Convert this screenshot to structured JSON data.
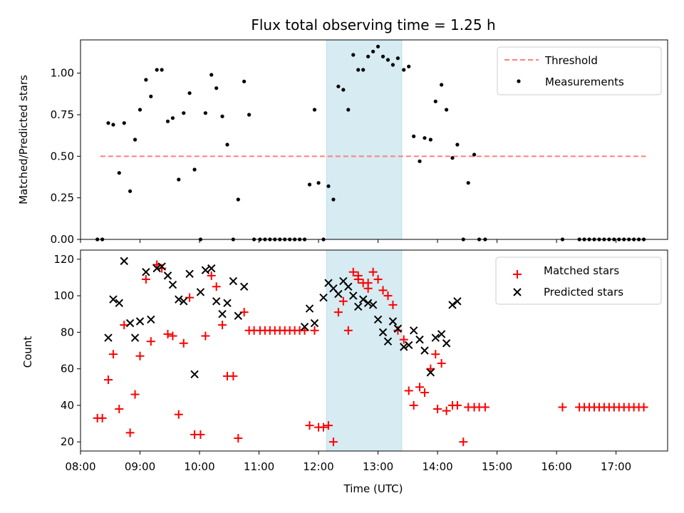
{
  "chart_data": [
    {
      "type": "scatter",
      "title": "Flux total observing time = 1.25 h",
      "xlabel": "",
      "ylabel": "Matched/Predicted stars",
      "xlim": [
        "08:00",
        "17:52"
      ],
      "ylim": [
        0,
        1.2
      ],
      "yticks": [
        "0.00",
        "0.25",
        "0.50",
        "0.75",
        "1.00"
      ],
      "highlight_span": {
        "start": "12:08",
        "end": "13:24"
      },
      "legend": {
        "placement": "top-right",
        "entries": [
          "Threshold",
          "Measurements"
        ]
      },
      "threshold": {
        "name": "Threshold",
        "value": 0.5,
        "x_start": "08:20",
        "x_end": "17:30",
        "color": "#ff7f7f",
        "style": "dashed"
      },
      "series": [
        {
          "name": "Measurements",
          "color": "#000000",
          "marker": "dot",
          "x": [
            "08:17",
            "08:22",
            "08:28",
            "08:33",
            "08:39",
            "08:44",
            "08:50",
            "08:55",
            "09:00",
            "09:06",
            "09:11",
            "09:17",
            "09:22",
            "09:28",
            "09:33",
            "09:39",
            "09:44",
            "09:50",
            "09:55",
            "10:01",
            "10:06",
            "10:12",
            "10:17",
            "10:23",
            "10:28",
            "10:34",
            "10:39",
            "10:45",
            "10:50",
            "10:55",
            "11:01",
            "11:06",
            "11:11",
            "11:16",
            "11:21",
            "11:26",
            "11:31",
            "11:36",
            "11:41",
            "11:46",
            "11:51",
            "11:56",
            "12:00",
            "12:05",
            "12:10",
            "12:15",
            "12:20",
            "12:25",
            "12:30",
            "12:35",
            "12:40",
            "12:45",
            "12:50",
            "12:55",
            "13:00",
            "13:05",
            "13:10",
            "13:15",
            "13:20",
            "13:26",
            "13:31",
            "13:36",
            "13:42",
            "13:47",
            "13:53",
            "13:58",
            "14:04",
            "14:09",
            "14:15",
            "14:20",
            "14:26",
            "14:31",
            "14:37",
            "14:42",
            "14:48",
            "16:06",
            "16:23",
            "16:28",
            "16:33",
            "16:38",
            "16:43",
            "16:48",
            "16:53",
            "16:58",
            "17:03",
            "17:08",
            "17:13",
            "17:18",
            "17:23",
            "17:28"
          ],
          "y": [
            0,
            0,
            0.7,
            0.69,
            0.4,
            0.7,
            0.29,
            0.6,
            0.78,
            0.96,
            0.86,
            1.02,
            1.02,
            0.71,
            0.73,
            0.36,
            0.76,
            0.88,
            0.42,
            0,
            0.76,
            0.99,
            0.91,
            0.74,
            0.57,
            0,
            0.24,
            0.95,
            0.75,
            0,
            0,
            0,
            0,
            0,
            0,
            0,
            0,
            0,
            0,
            0,
            0.33,
            0.78,
            0.34,
            0,
            0.32,
            0.24,
            0.92,
            0.9,
            0.78,
            1.11,
            1.02,
            1.02,
            1.1,
            1.13,
            1.16,
            1.1,
            1.08,
            1.05,
            1.09,
            1.02,
            1.04,
            0.62,
            0.47,
            0.61,
            0.6,
            0.83,
            0.93,
            0.78,
            0.49,
            0.57,
            0,
            0.34,
            0.51,
            0,
            0,
            0,
            0,
            0,
            0,
            0,
            0,
            0,
            0,
            0,
            0,
            0,
            0,
            0,
            0,
            0
          ]
        }
      ]
    },
    {
      "type": "scatter",
      "title": "",
      "xlabel": "Time (UTC)",
      "ylabel": "Count",
      "xlim": [
        "08:00",
        "17:52"
      ],
      "ylim": [
        15,
        125
      ],
      "yticks": [
        "20",
        "40",
        "60",
        "80",
        "100",
        "120"
      ],
      "xticks": [
        "08:00",
        "09:00",
        "10:00",
        "11:00",
        "12:00",
        "13:00",
        "14:00",
        "15:00",
        "16:00",
        "17:00"
      ],
      "highlight_span": {
        "start": "12:08",
        "end": "13:24"
      },
      "legend": {
        "placement": "top-right",
        "entries": [
          "Matched stars",
          "Predicted stars"
        ]
      },
      "series": [
        {
          "name": "Matched stars",
          "color": "#ff0000",
          "marker": "plus",
          "x": [
            "08:17",
            "08:22",
            "08:28",
            "08:33",
            "08:39",
            "08:44",
            "08:50",
            "08:55",
            "09:00",
            "09:06",
            "09:11",
            "09:17",
            "09:22",
            "09:28",
            "09:33",
            "09:39",
            "09:44",
            "09:50",
            "09:55",
            "10:01",
            "10:06",
            "10:12",
            "10:17",
            "10:23",
            "10:28",
            "10:34",
            "10:39",
            "10:45",
            "10:50",
            "10:55",
            "11:01",
            "11:06",
            "11:11",
            "11:16",
            "11:21",
            "11:26",
            "11:31",
            "11:36",
            "11:41",
            "11:46",
            "11:51",
            "11:56",
            "12:00",
            "12:05",
            "12:10",
            "12:15",
            "12:20",
            "12:25",
            "12:30",
            "12:35",
            "12:40",
            "12:45",
            "12:50",
            "12:55",
            "13:00",
            "13:05",
            "13:10",
            "13:15",
            "13:20",
            "13:26",
            "13:31",
            "13:36",
            "13:42",
            "13:47",
            "13:53",
            "13:58",
            "14:04",
            "14:09",
            "14:15",
            "14:20",
            "14:26",
            "14:31",
            "14:37",
            "14:42",
            "14:48",
            "16:06",
            "16:23",
            "16:28",
            "16:33",
            "16:38",
            "16:43",
            "16:48",
            "16:53",
            "16:58",
            "17:03",
            "17:08",
            "17:13",
            "17:18",
            "17:23",
            "17:28",
            "12:50",
            "12:40",
            "14:00"
          ],
          "y": [
            33,
            33,
            54,
            68,
            38,
            84,
            25,
            46,
            67,
            109,
            75,
            117,
            115,
            79,
            78,
            35,
            74,
            99,
            24,
            24,
            78,
            111,
            105,
            84,
            56,
            56,
            22,
            91,
            81,
            81,
            81,
            81,
            81,
            81,
            81,
            81,
            81,
            81,
            81,
            81,
            29,
            81,
            28,
            28,
            29,
            20,
            91,
            97,
            81,
            113,
            111,
            107,
            104,
            113,
            109,
            103,
            100,
            95,
            81,
            76,
            48,
            40,
            50,
            47,
            60,
            68,
            63,
            37,
            40,
            40,
            20,
            39,
            39,
            39,
            39,
            39,
            39,
            39,
            39,
            39,
            39,
            39,
            39,
            39,
            39,
            39,
            39,
            39,
            39,
            39,
            107,
            109,
            38
          ]
        },
        {
          "name": "Predicted stars",
          "color": "#000000",
          "marker": "cross",
          "x": [
            "08:28",
            "08:33",
            "08:39",
            "08:44",
            "08:50",
            "08:55",
            "09:00",
            "09:06",
            "09:11",
            "09:17",
            "09:22",
            "09:28",
            "09:33",
            "09:39",
            "09:44",
            "09:50",
            "09:55",
            "10:01",
            "10:06",
            "10:12",
            "10:17",
            "10:23",
            "10:28",
            "10:34",
            "10:39",
            "10:45",
            "11:46",
            "11:51",
            "11:56",
            "12:05",
            "12:10",
            "12:15",
            "12:20",
            "12:25",
            "12:30",
            "12:35",
            "12:40",
            "12:45",
            "12:50",
            "12:55",
            "13:00",
            "13:05",
            "13:10",
            "13:15",
            "13:20",
            "13:26",
            "13:31",
            "13:36",
            "13:42",
            "13:47",
            "13:53",
            "13:58",
            "14:04",
            "14:09",
            "14:15",
            "14:20"
          ],
          "y": [
            77,
            98,
            96,
            119,
            85,
            77,
            86,
            113,
            87,
            115,
            116,
            111,
            106,
            98,
            97,
            112,
            57,
            102,
            114,
            115,
            97,
            90,
            96,
            108,
            89,
            105,
            83,
            93,
            85,
            99,
            107,
            104,
            101,
            108,
            105,
            100,
            94,
            98,
            96,
            95,
            87,
            80,
            75,
            86,
            82,
            72,
            73,
            81,
            76,
            70,
            58,
            77,
            79,
            74,
            95,
            97
          ]
        }
      ]
    }
  ]
}
